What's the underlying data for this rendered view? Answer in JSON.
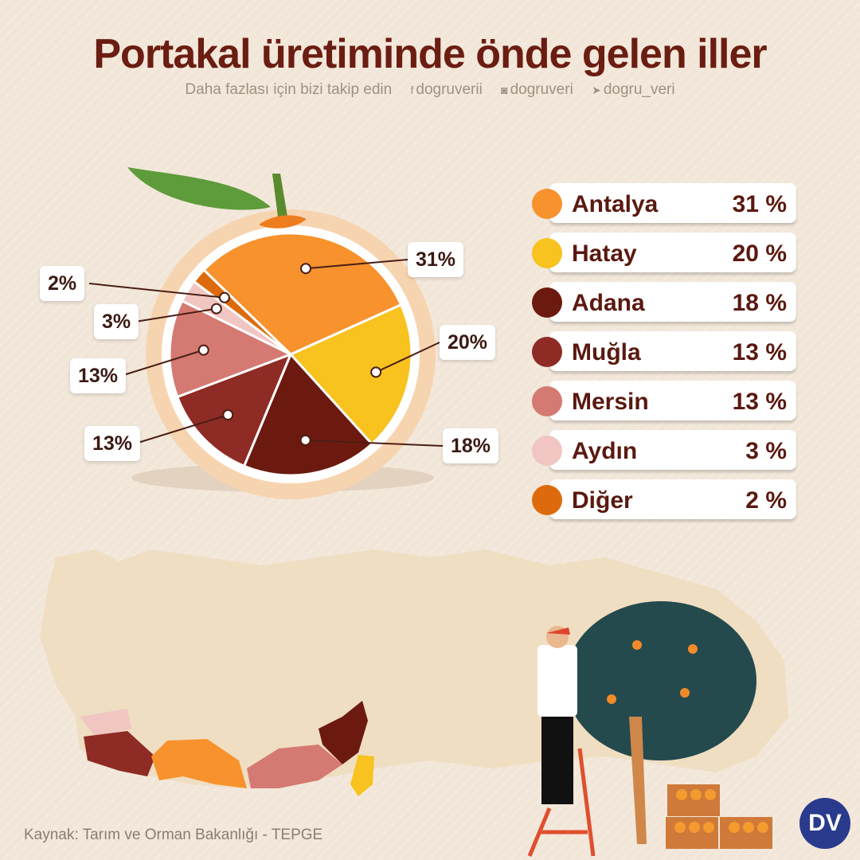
{
  "title": "Portakal üretiminde önde gelen iller",
  "social": {
    "prompt": "Daha fazlası için bizi takip edin",
    "facebook": "dogruverii",
    "instagram": "dogruveri",
    "twitter": "dogru_veri",
    "facebook_icon": "facebook-icon",
    "instagram_icon": "instagram-icon",
    "twitter_icon": "twitter-icon"
  },
  "chart_data": {
    "type": "pie",
    "categories": [
      "Antalya",
      "Hatay",
      "Adana",
      "Muğla",
      "Mersin",
      "Aydın",
      "Diğer"
    ],
    "values": [
      31,
      20,
      18,
      13,
      13,
      3,
      2
    ],
    "colors": [
      "#f7922d",
      "#f8c21f",
      "#6c1a0f",
      "#8e2b24",
      "#d47a72",
      "#f1c6c2",
      "#dd6b0d"
    ],
    "slice_labels": [
      "31%",
      "20%",
      "18%",
      "13%",
      "13%",
      "3%",
      "2%"
    ],
    "legend_values": [
      "31 %",
      "20 %",
      "18 %",
      "13 %",
      "13 %",
      "3 %",
      "2 %"
    ],
    "legend_position": "right"
  },
  "source": "Kaynak: Tarım ve Orman Bakanlığı - TEPGE",
  "logo": "DV"
}
